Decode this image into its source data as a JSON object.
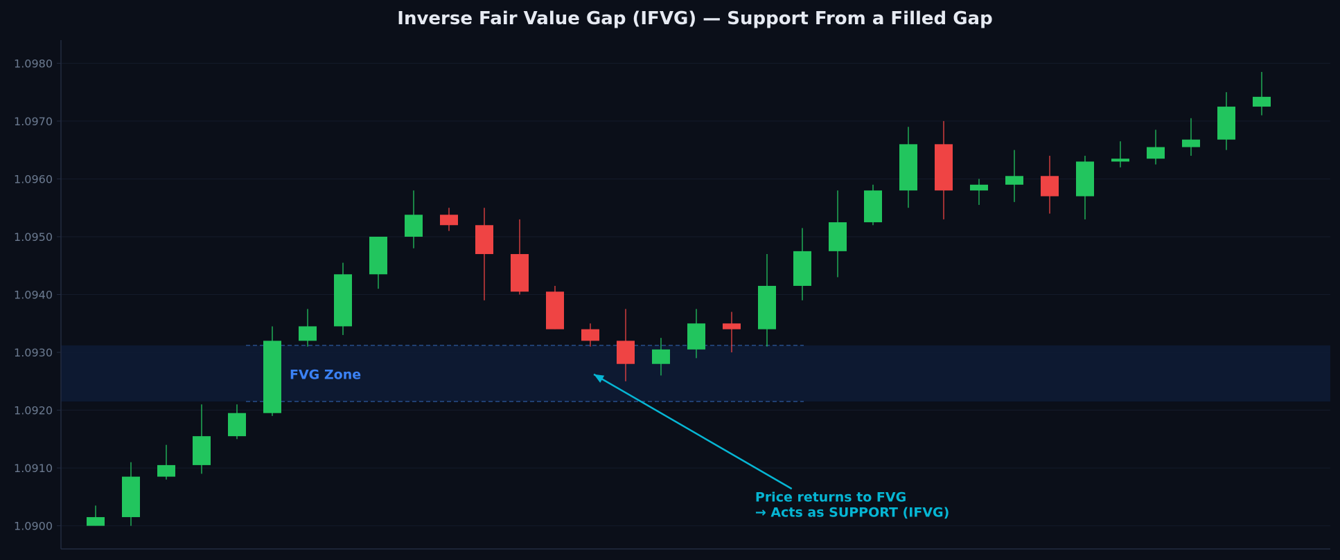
{
  "chart_data": {
    "type": "candlestick",
    "title": "Inverse Fair Value Gap (IFVG) — Support From a Filled Gap",
    "ylim": [
      1.0896,
      1.0984
    ],
    "yticks": [
      1.09,
      1.091,
      1.092,
      1.093,
      1.094,
      1.095,
      1.096,
      1.097,
      1.098
    ],
    "ytick_labels": [
      "1.0900",
      "1.0910",
      "1.0920",
      "1.0930",
      "1.0940",
      "1.0950",
      "1.0960",
      "1.0970",
      "1.0980"
    ],
    "grid": true,
    "candles": [
      {
        "o": 1.09,
        "h": 1.09035,
        "l": 1.09,
        "c": 1.09015
      },
      {
        "o": 1.09015,
        "h": 1.0911,
        "l": 1.09,
        "c": 1.09085
      },
      {
        "o": 1.09085,
        "h": 1.0914,
        "l": 1.0908,
        "c": 1.09105
      },
      {
        "o": 1.09105,
        "h": 1.0921,
        "l": 1.0909,
        "c": 1.09155
      },
      {
        "o": 1.09155,
        "h": 1.0921,
        "l": 1.0915,
        "c": 1.09195
      },
      {
        "o": 1.09195,
        "h": 1.09345,
        "l": 1.0919,
        "c": 1.0932
      },
      {
        "o": 1.0932,
        "h": 1.09375,
        "l": 1.0931,
        "c": 1.09345
      },
      {
        "o": 1.09345,
        "h": 1.09455,
        "l": 1.0933,
        "c": 1.09435
      },
      {
        "o": 1.09435,
        "h": 1.095,
        "l": 1.0941,
        "c": 1.095
      },
      {
        "o": 1.095,
        "h": 1.0958,
        "l": 1.0948,
        "c": 1.09538
      },
      {
        "o": 1.09538,
        "h": 1.0955,
        "l": 1.0951,
        "c": 1.0952
      },
      {
        "o": 1.0952,
        "h": 1.0955,
        "l": 1.0939,
        "c": 1.0947
      },
      {
        "o": 1.0947,
        "h": 1.0953,
        "l": 1.094,
        "c": 1.09405
      },
      {
        "o": 1.09405,
        "h": 1.09415,
        "l": 1.0934,
        "c": 1.0934
      },
      {
        "o": 1.0934,
        "h": 1.0935,
        "l": 1.0931,
        "c": 1.0932
      },
      {
        "o": 1.0932,
        "h": 1.09375,
        "l": 1.0925,
        "c": 1.0928
      },
      {
        "o": 1.0928,
        "h": 1.09325,
        "l": 1.0926,
        "c": 1.09305
      },
      {
        "o": 1.09305,
        "h": 1.09375,
        "l": 1.0929,
        "c": 1.0935
      },
      {
        "o": 1.0935,
        "h": 1.0937,
        "l": 1.093,
        "c": 1.0934
      },
      {
        "o": 1.0934,
        "h": 1.0947,
        "l": 1.0931,
        "c": 1.09415
      },
      {
        "o": 1.09415,
        "h": 1.09515,
        "l": 1.0939,
        "c": 1.09475
      },
      {
        "o": 1.09475,
        "h": 1.0958,
        "l": 1.0943,
        "c": 1.09525
      },
      {
        "o": 1.09525,
        "h": 1.0959,
        "l": 1.0952,
        "c": 1.0958
      },
      {
        "o": 1.0958,
        "h": 1.0969,
        "l": 1.0955,
        "c": 1.0966
      },
      {
        "o": 1.0966,
        "h": 1.097,
        "l": 1.0953,
        "c": 1.0958
      },
      {
        "o": 1.0958,
        "h": 1.096,
        "l": 1.09555,
        "c": 1.0959
      },
      {
        "o": 1.0959,
        "h": 1.0965,
        "l": 1.0956,
        "c": 1.09605
      },
      {
        "o": 1.09605,
        "h": 1.0964,
        "l": 1.0954,
        "c": 1.0957
      },
      {
        "o": 1.0957,
        "h": 1.0964,
        "l": 1.0953,
        "c": 1.0963
      },
      {
        "o": 1.0963,
        "h": 1.09665,
        "l": 1.0962,
        "c": 1.09635
      },
      {
        "o": 1.09635,
        "h": 1.09685,
        "l": 1.09625,
        "c": 1.09655
      },
      {
        "o": 1.09655,
        "h": 1.09705,
        "l": 1.0964,
        "c": 1.09668
      },
      {
        "o": 1.09668,
        "h": 1.0975,
        "l": 1.0965,
        "c": 1.09725
      },
      {
        "o": 1.09725,
        "h": 1.09785,
        "l": 1.0971,
        "c": 1.09742
      }
    ],
    "fvg_zone": {
      "label": "FVG Zone",
      "low": 1.09215,
      "high": 1.09312,
      "line_start_index": 5,
      "line_end_index": 20
    },
    "annotation": {
      "lines": [
        "Price returns to FVG",
        "→ Acts as SUPPORT (IFVG)"
      ],
      "arrow_target": {
        "x_index": 14.1,
        "y": 1.09262
      },
      "arrow_tail": {
        "x_index": 19.7,
        "y": 1.09064
      },
      "text_anchor": {
        "x_index": 18.9,
        "y": 1.09042
      }
    },
    "colors": {
      "background": "#0b0f19",
      "bull": "#22c55e",
      "bear": "#ef4444",
      "zone_fill": "#0e1a33",
      "zone_line": "#2c5aa0",
      "zone_label": "#3b82f6",
      "annotation": "#06b6d4",
      "grid": "#141b2b",
      "axis": "#222b40",
      "tick_text": "#6b7a90",
      "title": "#e6eaf2"
    }
  }
}
